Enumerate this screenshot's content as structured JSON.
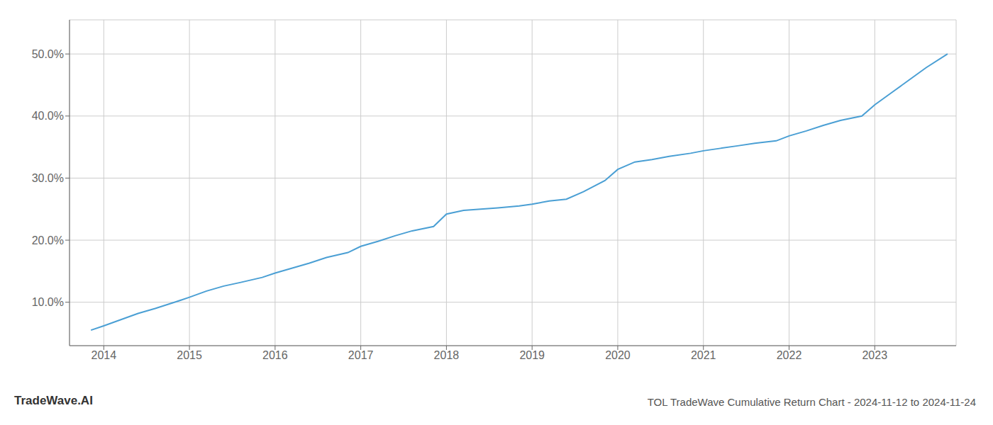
{
  "chart_data": {
    "type": "line",
    "title": "TOL TradeWave Cumulative Return Chart - 2024-11-12 to 2024-11-24",
    "annotations": [
      "TradeWave.AI"
    ],
    "color": "#4a9fd4",
    "grid": true,
    "x": [
      2013.85,
      2014.0,
      2014.2,
      2014.4,
      2014.6,
      2014.85,
      2015.0,
      2015.2,
      2015.4,
      2015.6,
      2015.85,
      2016.0,
      2016.2,
      2016.4,
      2016.6,
      2016.85,
      2017.0,
      2017.2,
      2017.4,
      2017.6,
      2017.85,
      2018.0,
      2018.2,
      2018.4,
      2018.6,
      2018.85,
      2019.0,
      2019.2,
      2019.4,
      2019.6,
      2019.85,
      2020.0,
      2020.2,
      2020.4,
      2020.6,
      2020.85,
      2021.0,
      2021.2,
      2021.4,
      2021.6,
      2021.85,
      2022.0,
      2022.2,
      2022.4,
      2022.6,
      2022.85,
      2023.0,
      2023.2,
      2023.4,
      2023.6,
      2023.85
    ],
    "values": [
      0.055,
      0.062,
      0.072,
      0.082,
      0.09,
      0.101,
      0.108,
      0.118,
      0.126,
      0.132,
      0.14,
      0.147,
      0.155,
      0.163,
      0.172,
      0.18,
      0.19,
      0.198,
      0.207,
      0.215,
      0.222,
      0.242,
      0.248,
      0.25,
      0.252,
      0.255,
      0.258,
      0.263,
      0.266,
      0.278,
      0.296,
      0.314,
      0.326,
      0.33,
      0.335,
      0.34,
      0.344,
      0.348,
      0.352,
      0.356,
      0.36,
      0.368,
      0.376,
      0.385,
      0.393,
      0.4,
      0.418,
      0.438,
      0.458,
      0.478,
      0.5
    ],
    "xlim": [
      2013.6,
      2023.95
    ],
    "xticks": [
      2014,
      2015,
      2016,
      2017,
      2018,
      2019,
      2020,
      2021,
      2022,
      2023
    ],
    "ylim": [
      0.03,
      0.555
    ],
    "yticks": [
      {
        "value": 0.1,
        "label": "10.0%"
      },
      {
        "value": 0.2,
        "label": "20.0%"
      },
      {
        "value": 0.3,
        "label": "30.0%"
      },
      {
        "value": 0.4,
        "label": "40.0%"
      },
      {
        "value": 0.5,
        "label": "50.0%"
      }
    ]
  }
}
